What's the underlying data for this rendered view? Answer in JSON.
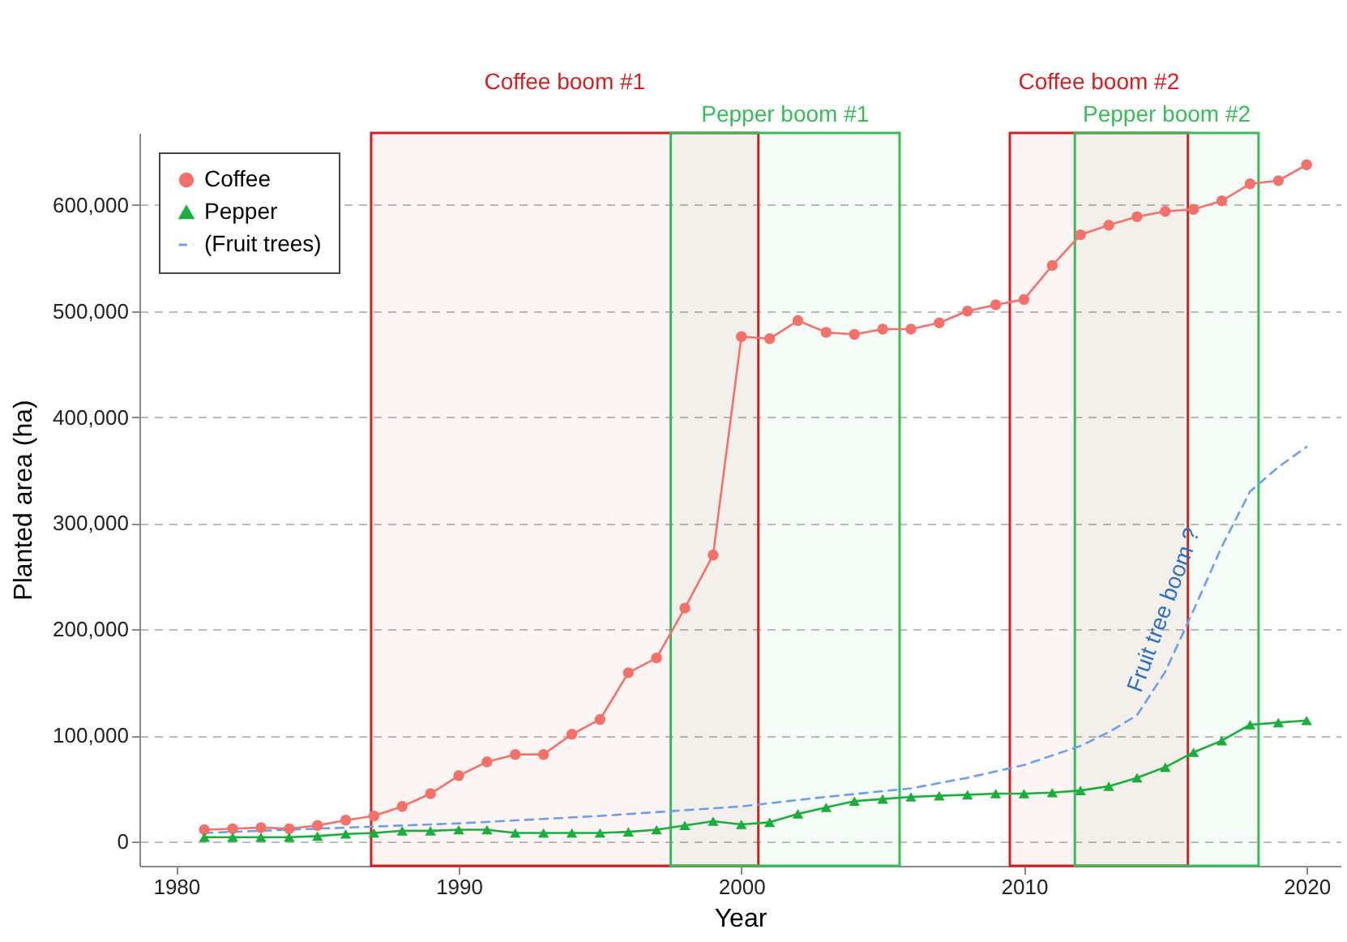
{
  "chart_data": {
    "type": "line",
    "xlabel": "Year",
    "ylabel": "Planted area (ha)",
    "x": [
      1981,
      1982,
      1983,
      1984,
      1985,
      1986,
      1987,
      1988,
      1989,
      1990,
      1991,
      1992,
      1993,
      1994,
      1995,
      1996,
      1997,
      1998,
      1999,
      2000,
      2001,
      2002,
      2003,
      2004,
      2005,
      2006,
      2007,
      2008,
      2009,
      2010,
      2011,
      2012,
      2013,
      2014,
      2015,
      2016,
      2017,
      2018,
      2019,
      2020
    ],
    "series": [
      {
        "name": "Coffee",
        "color": "#f4716b",
        "marker": "circle",
        "line_style": "solid",
        "values": [
          11000,
          12000,
          13000,
          12000,
          15000,
          20000,
          24000,
          33000,
          45000,
          62000,
          75000,
          82000,
          82000,
          101000,
          115000,
          159000,
          173000,
          220000,
          270000,
          476000,
          474000,
          491000,
          480000,
          478000,
          483000,
          483000,
          489000,
          500000,
          506000,
          511000,
          543000,
          572000,
          581000,
          589000,
          594000,
          596000,
          604000,
          620000,
          623000,
          638000
        ]
      },
      {
        "name": "Pepper",
        "color": "#1aaf3c",
        "marker": "triangle",
        "line_style": "solid",
        "values": [
          4000,
          4000,
          4000,
          4000,
          5000,
          7000,
          8000,
          10000,
          10000,
          11000,
          11000,
          8000,
          8000,
          8000,
          8000,
          9000,
          11000,
          15000,
          19000,
          16000,
          18000,
          26000,
          32000,
          38000,
          40000,
          42000,
          43000,
          44000,
          45000,
          45000,
          46000,
          48000,
          52000,
          60000,
          70000,
          84000,
          95000,
          110000,
          112000,
          114000
        ]
      },
      {
        "name": "(Fruit trees)",
        "color": "#6d9eeb",
        "marker": "none",
        "line_style": "dashed",
        "x": [
          1981,
          1985,
          1990,
          1995,
          2000,
          2003,
          2006,
          2008,
          2010,
          2012,
          2013,
          2014,
          2015,
          2016,
          2017,
          2018,
          2019,
          2020
        ],
        "values": [
          8000,
          12000,
          17000,
          24000,
          33000,
          42000,
          50000,
          60000,
          72000,
          90000,
          103000,
          119000,
          160000,
          218000,
          278000,
          330000,
          353000,
          372000
        ]
      }
    ],
    "xlim": [
      1978.7,
      2021.2
    ],
    "xticks": [
      1980,
      1990,
      2000,
      2010,
      2020
    ],
    "ylim": [
      -23000,
      668000
    ],
    "yticks": [
      {
        "value": 0,
        "label": "0"
      },
      {
        "value": 100000,
        "label": "100,000"
      },
      {
        "value": 200000,
        "label": "200,000"
      },
      {
        "value": 300000,
        "label": "300,000"
      },
      {
        "value": 400000,
        "label": "400,000"
      },
      {
        "value": 500000,
        "label": "500,000"
      },
      {
        "value": 600000,
        "label": "600,000"
      }
    ],
    "grid": "y",
    "legend": "top left",
    "bands": [
      {
        "axis": "x",
        "from": 1986.9,
        "to": 2000.6,
        "label": "Coffee boom #1",
        "color": "#d42020"
      },
      {
        "axis": "x",
        "from": 1997.5,
        "to": 2005.6,
        "label": "Pepper boom #1",
        "color": "#3cb95a"
      },
      {
        "axis": "x",
        "from": 2009.5,
        "to": 2015.8,
        "label": "Coffee boom #2",
        "color": "#d42020"
      },
      {
        "axis": "x",
        "from": 2011.8,
        "to": 2018.3,
        "label": "Pepper boom #2",
        "color": "#3cb95a"
      }
    ],
    "annotations": [
      {
        "text": "Fruit tree boom ?",
        "x": 2016,
        "y": 218000
      }
    ]
  }
}
